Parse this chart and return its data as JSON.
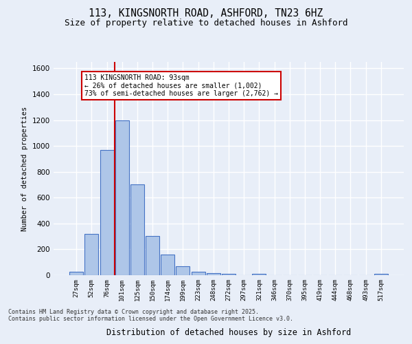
{
  "title1": "113, KINGSNORTH ROAD, ASHFORD, TN23 6HZ",
  "title2": "Size of property relative to detached houses in Ashford",
  "xlabel": "Distribution of detached houses by size in Ashford",
  "ylabel": "Number of detached properties",
  "categories": [
    "27sqm",
    "52sqm",
    "76sqm",
    "101sqm",
    "125sqm",
    "150sqm",
    "174sqm",
    "199sqm",
    "223sqm",
    "248sqm",
    "272sqm",
    "297sqm",
    "321sqm",
    "346sqm",
    "370sqm",
    "395sqm",
    "419sqm",
    "444sqm",
    "468sqm",
    "493sqm",
    "517sqm"
  ],
  "values": [
    25,
    320,
    970,
    1200,
    700,
    305,
    160,
    70,
    25,
    15,
    10,
    0,
    8,
    0,
    0,
    0,
    0,
    0,
    0,
    0,
    10
  ],
  "bar_color": "#aec6e8",
  "bar_edge_color": "#4472c4",
  "vline_color": "#cc0000",
  "annotation_text": "113 KINGSNORTH ROAD: 93sqm\n← 26% of detached houses are smaller (1,002)\n73% of semi-detached houses are larger (2,762) →",
  "annotation_box_color": "#ffffff",
  "annotation_box_edge": "#cc0000",
  "ylim": [
    0,
    1650
  ],
  "yticks": [
    0,
    200,
    400,
    600,
    800,
    1000,
    1200,
    1400,
    1600
  ],
  "background_color": "#e8eef8",
  "grid_color": "#ffffff",
  "footer1": "Contains HM Land Registry data © Crown copyright and database right 2025.",
  "footer2": "Contains public sector information licensed under the Open Government Licence v3.0."
}
